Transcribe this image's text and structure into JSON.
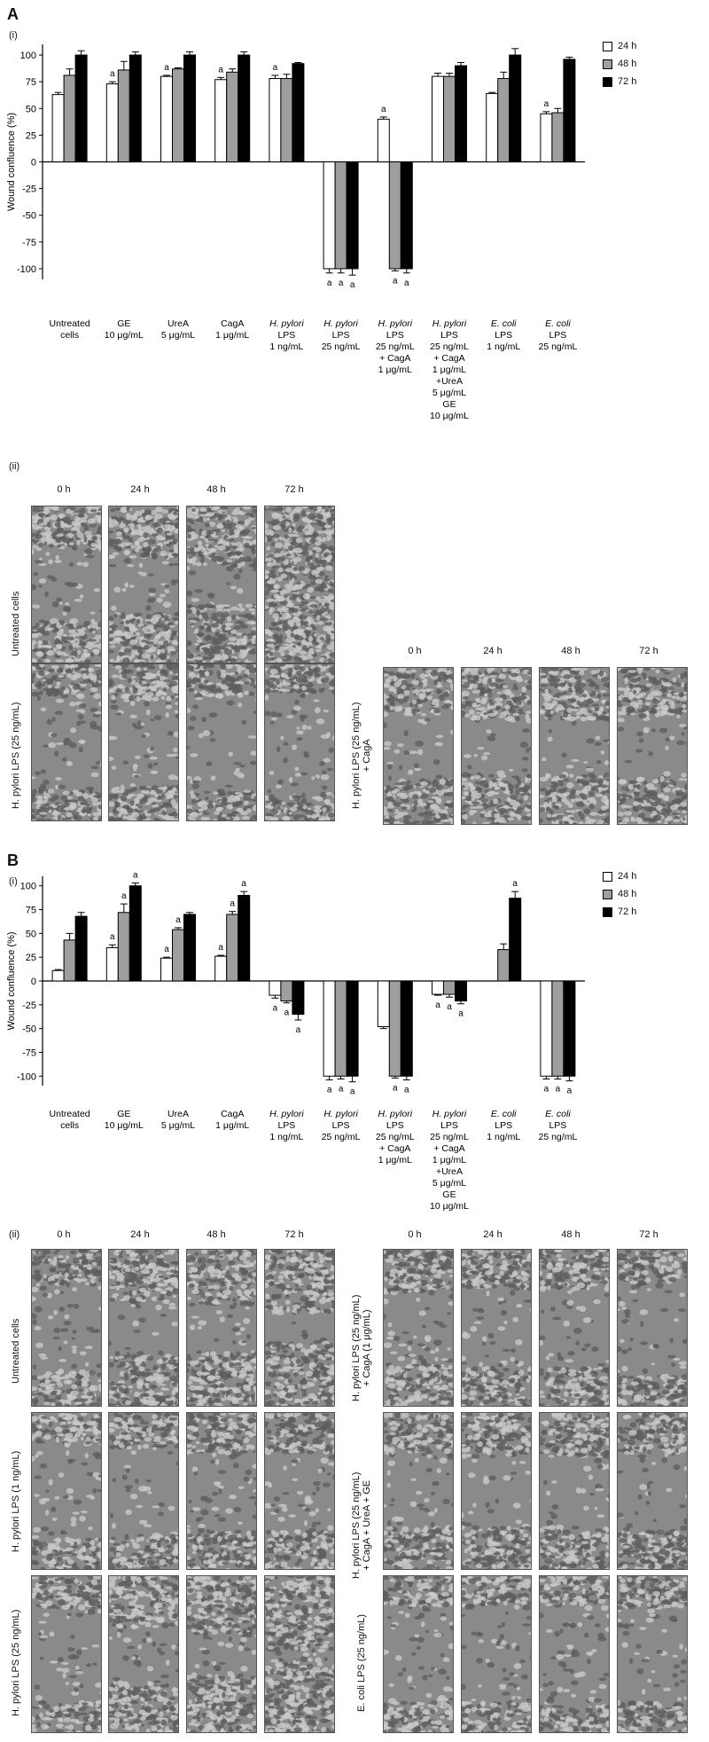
{
  "panels": {
    "A": {
      "letter": "A",
      "sub_i": "(i)",
      "sub_ii": "(ii)"
    },
    "B": {
      "letter": "B",
      "sub_i": "(i)",
      "sub_ii": "(ii)"
    }
  },
  "legend": [
    {
      "label": "24 h",
      "color": "#ffffff"
    },
    {
      "label": "48 h",
      "color": "#9e9e9e"
    },
    {
      "label": "72 h",
      "color": "#000000"
    }
  ],
  "chart_data": [
    {
      "type": "bar",
      "title": "",
      "ylabel": "Wound confluence (%)",
      "ylim": [
        -110,
        110
      ],
      "yticks": [
        100,
        75,
        50,
        25,
        0,
        -25,
        -50,
        -75,
        -100
      ],
      "categories": [
        [
          "Untreated",
          "cells"
        ],
        [
          "GE",
          "10 μg/mL"
        ],
        [
          "UreA",
          "5 μg/mL"
        ],
        [
          "CagA",
          "1 μg/mL"
        ],
        [
          "H. pylori",
          "LPS",
          "1 ng/mL"
        ],
        [
          "H. pylori",
          "LPS",
          "25 ng/mL"
        ],
        [
          "H. pylori",
          "LPS",
          "25 ng/mL",
          "+ CagA",
          "1 μg/mL"
        ],
        [
          "H. pylori",
          "LPS",
          "25 ng/mL",
          "+ CagA",
          "1 μg/mL",
          "+UreA",
          "5 μg/mL",
          "GE",
          "10 μg/mL"
        ],
        [
          "E. coli",
          "LPS",
          "1 ng/mL"
        ],
        [
          "E. coli",
          "LPS",
          "25 ng/mL"
        ]
      ],
      "series": [
        {
          "name": "24 h",
          "values": [
            63,
            73,
            80,
            77,
            78,
            -100,
            40,
            80,
            64,
            45
          ],
          "errors": [
            2,
            2,
            1,
            2,
            3,
            4,
            2,
            3,
            1,
            2
          ],
          "sig": [
            0,
            1,
            1,
            1,
            1,
            1,
            1,
            0,
            0,
            1
          ]
        },
        {
          "name": "48 h",
          "values": [
            81,
            86,
            87,
            84,
            78,
            -100,
            -100,
            80,
            78,
            46
          ],
          "errors": [
            6,
            8,
            1,
            3,
            4,
            4,
            2,
            3,
            6,
            4
          ],
          "sig": [
            0,
            0,
            0,
            0,
            0,
            1,
            1,
            0,
            0,
            0
          ]
        },
        {
          "name": "72 h",
          "values": [
            100,
            100,
            100,
            100,
            92,
            -100,
            -100,
            90,
            100,
            96
          ],
          "errors": [
            4,
            3,
            3,
            3,
            1,
            6,
            4,
            3,
            6,
            2
          ],
          "sig": [
            0,
            0,
            0,
            0,
            0,
            1,
            1,
            0,
            0,
            0
          ]
        }
      ],
      "sig_label": "a"
    },
    {
      "type": "bar",
      "title": "",
      "ylabel": "Wound confluence (%)",
      "ylim": [
        -110,
        110
      ],
      "yticks": [
        100,
        75,
        50,
        25,
        0,
        -25,
        -50,
        -75,
        -100
      ],
      "categories": [
        [
          "Untreated",
          "cells"
        ],
        [
          "GE",
          "10 μg/mL"
        ],
        [
          "UreA",
          "5 μg/mL"
        ],
        [
          "CagA",
          "1 μg/mL"
        ],
        [
          "H. pylori",
          "LPS",
          "1 ng/mL"
        ],
        [
          "H. pylori",
          "LPS",
          "25 ng/mL"
        ],
        [
          "H. pylori",
          "LPS",
          "25 ng/mL",
          "+ CagA",
          "1 μg/mL"
        ],
        [
          "H. pylori",
          "LPS",
          "25 ng/mL",
          "+ CagA",
          "1 μg/mL",
          "+UreA",
          "5 μg/mL",
          "GE",
          "10 μg/mL"
        ],
        [
          "E. coli",
          "LPS",
          "1 ng/mL"
        ],
        [
          "E. coli",
          "LPS",
          "25 ng/mL"
        ]
      ],
      "series": [
        {
          "name": "24 h",
          "values": [
            11,
            35,
            24,
            26,
            -15,
            -100,
            -48,
            -14,
            0,
            -100
          ],
          "errors": [
            1,
            3,
            1,
            1,
            3,
            4,
            2,
            1,
            0,
            3
          ],
          "sig": [
            0,
            1,
            1,
            1,
            1,
            1,
            0,
            1,
            0,
            1
          ]
        },
        {
          "name": "48 h",
          "values": [
            43,
            72,
            54,
            70,
            -21,
            -100,
            -100,
            -14,
            33,
            -100
          ],
          "errors": [
            7,
            9,
            2,
            3,
            2,
            3,
            2,
            3,
            6,
            3
          ],
          "sig": [
            0,
            1,
            1,
            1,
            1,
            1,
            1,
            1,
            0,
            1
          ]
        },
        {
          "name": "72 h",
          "values": [
            68,
            100,
            70,
            90,
            -35,
            -100,
            -100,
            -21,
            87,
            -100
          ],
          "errors": [
            4,
            3,
            2,
            4,
            6,
            6,
            4,
            3,
            7,
            5
          ],
          "sig": [
            0,
            1,
            0,
            1,
            1,
            1,
            1,
            1,
            1,
            1
          ]
        }
      ],
      "sig_label": "a"
    }
  ],
  "micrographs": {
    "time_labels": [
      "0 h",
      "24 h",
      "48 h",
      "72 h"
    ],
    "A": {
      "left_rows": [
        "Untreated cells",
        "H. pylori LPS (25 ng/mL)"
      ],
      "right_rows": [
        [
          "H. pylori LPS (25 ng/mL)",
          "+ CagA"
        ]
      ]
    },
    "B": {
      "left_rows": [
        "Untreated cells",
        "H. pylori LPS (1 ng/mL)",
        "H. pylori LPS (25 ng/mL)"
      ],
      "right_rows": [
        [
          "H. pylori LPS (25 ng/mL)",
          "+ CagA (1 μg/mL)"
        ],
        [
          "H. pylori LPS (25 ng/mL)",
          "+ CagA + UreA + GE"
        ],
        [
          "E. coli LPS (25 ng/mL)"
        ]
      ]
    }
  }
}
